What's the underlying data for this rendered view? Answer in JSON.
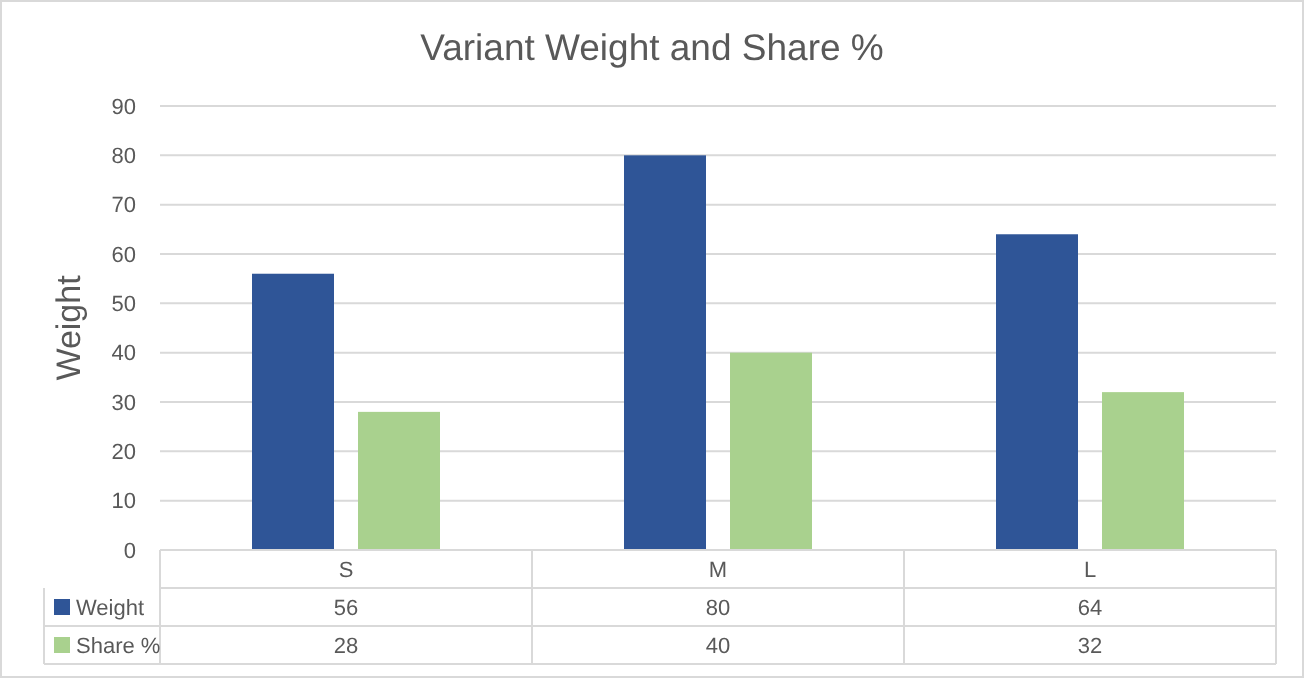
{
  "chart_data": {
    "type": "bar",
    "title": "Variant Weight and Share %",
    "ylabel": "Weight",
    "categories": [
      "S",
      "M",
      "L"
    ],
    "series": [
      {
        "name": "Weight",
        "color": "#2f5597",
        "values": [
          56,
          80,
          64
        ]
      },
      {
        "name": "Share %",
        "color": "#a9d18e",
        "values": [
          28,
          40,
          32
        ]
      }
    ],
    "ylim": [
      0,
      90
    ],
    "yticks": [
      0,
      10,
      20,
      30,
      40,
      50,
      60,
      70,
      80,
      90
    ],
    "grid": "y",
    "legend": "bottom",
    "data_labels": true
  }
}
